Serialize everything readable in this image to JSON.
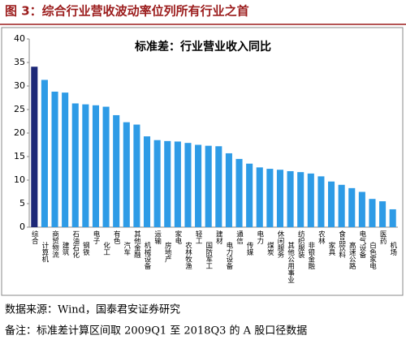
{
  "header": "图 3：综合行业营收波动率位列所有行业之首",
  "chart_data": {
    "type": "bar",
    "title": "标准差：行业营业收入同比",
    "categories": [
      "综合",
      "计算机",
      "商贸物流",
      "建筑",
      "石油石化",
      "钢铁",
      "电子",
      "化工",
      "有色",
      "汽车",
      "其他金融",
      "机械设备",
      "运输",
      "房地产",
      "家电",
      "农林牧渔",
      "轻工",
      "国防军工",
      "建材",
      "电力设备",
      "通信",
      "传媒",
      "电力",
      "煤炭",
      "休闲服务",
      "其他公用事业",
      "纺织服装",
      "非银金融",
      "农林",
      "家具",
      "食品饮料",
      "高速公路",
      "电气设备",
      "白色家电",
      "医药",
      "机场"
    ],
    "values": [
      34.1,
      31.3,
      28.8,
      28.6,
      26.3,
      26.1,
      25.9,
      25.6,
      23.8,
      22.3,
      21.8,
      19.3,
      18.5,
      18.3,
      18.2,
      17.9,
      17.5,
      17.3,
      17.2,
      15.7,
      14.5,
      13.5,
      12.7,
      12.4,
      12.2,
      11.9,
      11.7,
      11.4,
      10.8,
      9.7,
      9.0,
      8.3,
      7.5,
      6.0,
      5.5,
      3.8
    ],
    "colors": [
      "#1c2777",
      "#2e9be6"
    ],
    "ylim": [
      0,
      40
    ],
    "yticks": [
      0,
      5,
      10,
      15,
      20,
      25,
      30,
      35,
      40
    ]
  },
  "source": "数据来源：Wind，国泰君安证券研究",
  "note": "备注：标准差计算区间取 2009Q1 至 2018Q3 的 A 股口径数据"
}
